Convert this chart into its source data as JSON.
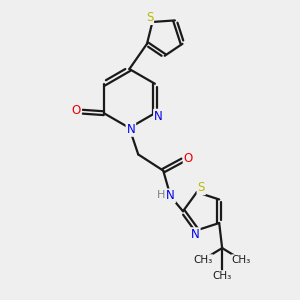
{
  "bg_color": "#efefef",
  "bond_color": "#1a1a1a",
  "N_color": "#0000ee",
  "O_color": "#ee0000",
  "S_color": "#bbbb00",
  "H_color": "#808080",
  "figsize": [
    3.0,
    3.0
  ],
  "dpi": 100,
  "xlim": [
    0,
    10
  ],
  "ylim": [
    0,
    10
  ]
}
